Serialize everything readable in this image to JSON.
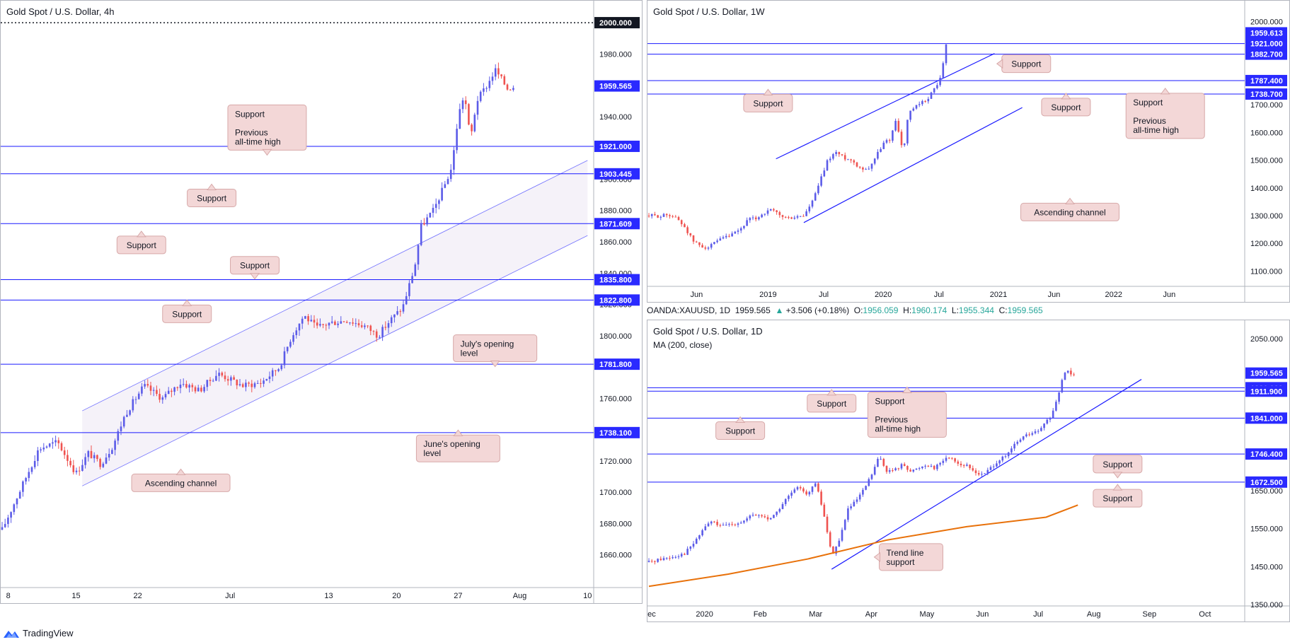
{
  "brand": {
    "name": "TradingView",
    "icon": "tradingview-logo-icon"
  },
  "colors": {
    "bull": "#5b5be8",
    "bear": "#ef5350",
    "level": "#1a1aff",
    "label_bg": "#f3d7d7",
    "label_border": "#d7a9a9",
    "tag_bg": "#2a2aff",
    "ma": "#e8710a"
  },
  "ohlc_bar": {
    "symbol": "OANDA:XAUUSD, 1D",
    "last": "1959.565",
    "change": "+3.506 (+0.18%)",
    "o_label": "O:",
    "o": "1956.059",
    "h_label": "H:",
    "h": "1960.174",
    "l_label": "L:",
    "l": "1955.344",
    "c_label": "C:",
    "c": "1959.565"
  },
  "chart_data": [
    {
      "id": "left",
      "type": "candlestick",
      "title": "Gold Spot / U.S. Dollar, 4h",
      "ylim": [
        1640,
        2005
      ],
      "y_ticks": [
        1660,
        1680,
        1700,
        1720,
        1740,
        1760,
        1780,
        1800,
        1820,
        1840,
        1860,
        1880,
        1900,
        1920,
        1940,
        1960,
        1980
      ],
      "y_tick_labels": [
        "1660.000",
        "1680.000",
        "1700.000",
        "1720.000",
        "1740.000",
        "1760.000",
        "1780.000",
        "1800.000",
        "1820.000",
        "1840.000",
        "1860.000",
        "1880.000",
        "1900.000",
        "1920.000",
        "1940.000",
        "1960.000",
        "1980.000"
      ],
      "x_range": [
        0,
        48
      ],
      "x_ticks": [
        {
          "x": 0.5,
          "label": "8"
        },
        {
          "x": 6,
          "label": "15"
        },
        {
          "x": 11,
          "label": "22"
        },
        {
          "x": 18.5,
          "label": "Jul"
        },
        {
          "x": 26.5,
          "label": "13"
        },
        {
          "x": 32,
          "label": "20"
        },
        {
          "x": 37,
          "label": "27"
        },
        {
          "x": 42,
          "label": "Aug"
        },
        {
          "x": 47.5,
          "label": "10"
        }
      ],
      "price_path": [
        [
          0,
          1676
        ],
        [
          1.5,
          1702
        ],
        [
          3,
          1728
        ],
        [
          4.5,
          1732
        ],
        [
          6,
          1712
        ],
        [
          7,
          1725
        ],
        [
          8,
          1718
        ],
        [
          9,
          1730
        ],
        [
          10,
          1750
        ],
        [
          11.5,
          1768
        ],
        [
          13,
          1760
        ],
        [
          14.5,
          1770
        ],
        [
          16,
          1765
        ],
        [
          17.5,
          1776
        ],
        [
          19.5,
          1768
        ],
        [
          21,
          1770
        ],
        [
          22.5,
          1780
        ],
        [
          23.5,
          1800
        ],
        [
          24.5,
          1813
        ],
        [
          25.5,
          1805
        ],
        [
          26.5,
          1808
        ],
        [
          28,
          1810
        ],
        [
          29.5,
          1806
        ],
        [
          30.5,
          1800
        ],
        [
          31.5,
          1810
        ],
        [
          32.5,
          1818
        ],
        [
          33.5,
          1845
        ],
        [
          34,
          1870
        ],
        [
          35,
          1880
        ],
        [
          36,
          1898
        ],
        [
          36.5,
          1908
        ],
        [
          37,
          1940
        ],
        [
          37.5,
          1955
        ],
        [
          38,
          1925
        ],
        [
          38.5,
          1950
        ],
        [
          39.5,
          1962
        ],
        [
          40,
          1970
        ],
        [
          41,
          1958
        ],
        [
          41.5,
          1959.565
        ]
      ],
      "levels": [
        {
          "value": 2000.0,
          "label": "2000.000",
          "style": "dotted"
        },
        {
          "value": 1959.565,
          "label": "1959.565",
          "style": "price"
        },
        {
          "value": 1921.0,
          "label": "1921.000",
          "style": "solid"
        },
        {
          "value": 1903.445,
          "label": "1903.445",
          "style": "solid"
        },
        {
          "value": 1871.609,
          "label": "1871.609",
          "style": "solid"
        },
        {
          "value": 1835.8,
          "label": "1835.800",
          "style": "solid"
        },
        {
          "value": 1822.8,
          "label": "1822.800",
          "style": "solid"
        },
        {
          "value": 1781.8,
          "label": "1781.800",
          "style": "solid"
        },
        {
          "value": 1738.1,
          "label": "1738.100",
          "style": "solid"
        }
      ],
      "channel": {
        "lower": [
          [
            6.5,
            1704
          ],
          [
            47.5,
            1864
          ]
        ],
        "upper": [
          [
            6.5,
            1752
          ],
          [
            47.5,
            1912
          ]
        ]
      },
      "annotations": [
        {
          "lines": [
            "Support",
            "",
            "Previous",
            "all-time high"
          ],
          "x": 21.5,
          "y": 1933,
          "pointer": "down"
        },
        {
          "lines": [
            "Support"
          ],
          "x": 17,
          "y": 1888,
          "pointer": "up"
        },
        {
          "lines": [
            "Support"
          ],
          "x": 11.3,
          "y": 1858,
          "pointer": "up"
        },
        {
          "lines": [
            "Support"
          ],
          "x": 20.5,
          "y": 1845,
          "pointer": "down"
        },
        {
          "lines": [
            "Support"
          ],
          "x": 15,
          "y": 1814,
          "pointer": "up"
        },
        {
          "lines": [
            "July's opening",
            "level"
          ],
          "x": 40,
          "y": 1792,
          "pointer": "down"
        },
        {
          "lines": [
            "June's opening",
            "level"
          ],
          "x": 37,
          "y": 1728,
          "pointer": "up"
        },
        {
          "lines": [
            "Ascending channel"
          ],
          "x": 14.5,
          "y": 1706,
          "pointer": "up"
        }
      ]
    },
    {
      "id": "weekly",
      "type": "candlestick",
      "title": "Gold Spot / U.S. Dollar, 1W",
      "ylim": [
        1050,
        2050
      ],
      "y_ticks": [
        1100,
        1200,
        1300,
        1400,
        1500,
        1600,
        1700,
        1800,
        1900,
        2000
      ],
      "y_tick_labels": [
        "1100.000",
        "1200.000",
        "1300.000",
        "1400.000",
        "1500.000",
        "1600.000",
        "1700.000",
        "",
        "",
        "2000.000"
      ],
      "x_range": [
        0,
        150
      ],
      "x_ticks": [
        {
          "x": 12,
          "label": "Jun"
        },
        {
          "x": 30,
          "label": "2019"
        },
        {
          "x": 44,
          "label": "Jul"
        },
        {
          "x": 59,
          "label": "2020"
        },
        {
          "x": 73,
          "label": "Jul"
        },
        {
          "x": 88,
          "label": "2021"
        },
        {
          "x": 102,
          "label": "Jun"
        },
        {
          "x": 117,
          "label": "2022"
        },
        {
          "x": 131,
          "label": "Jun"
        }
      ],
      "price_path": [
        [
          0,
          1300
        ],
        [
          3,
          1298
        ],
        [
          5,
          1305
        ],
        [
          7,
          1290
        ],
        [
          9,
          1260
        ],
        [
          11,
          1210
        ],
        [
          13,
          1190
        ],
        [
          15,
          1185
        ],
        [
          17,
          1205
        ],
        [
          19,
          1220
        ],
        [
          21,
          1230
        ],
        [
          23,
          1250
        ],
        [
          25,
          1285
        ],
        [
          27,
          1290
        ],
        [
          29,
          1310
        ],
        [
          31,
          1320
        ],
        [
          33,
          1300
        ],
        [
          35,
          1290
        ],
        [
          37,
          1295
        ],
        [
          39,
          1300
        ],
        [
          41,
          1345
        ],
        [
          43,
          1420
        ],
        [
          45,
          1500
        ],
        [
          47,
          1530
        ],
        [
          49,
          1510
        ],
        [
          51,
          1500
        ],
        [
          53,
          1475
        ],
        [
          55,
          1465
        ],
        [
          57,
          1510
        ],
        [
          59,
          1560
        ],
        [
          61,
          1580
        ],
        [
          62,
          1650
        ],
        [
          63,
          1600
        ],
        [
          64,
          1520
        ],
        [
          65,
          1640
        ],
        [
          66,
          1680
        ],
        [
          68,
          1700
        ],
        [
          70,
          1720
        ],
        [
          72,
          1760
        ],
        [
          73,
          1780
        ],
        [
          74,
          1840
        ],
        [
          75,
          1940
        ],
        [
          75.5,
          1959.613
        ]
      ],
      "levels": [
        {
          "value": 1959.613,
          "label": "1959.613",
          "style": "price"
        },
        {
          "value": 1921.0,
          "label": "1921.000",
          "style": "solid"
        },
        {
          "value": 1882.7,
          "label": "1882.700",
          "style": "solid"
        },
        {
          "value": 1787.4,
          "label": "1787.400",
          "style": "solid"
        },
        {
          "value": 1738.7,
          "label": "1738.700",
          "style": "solid"
        }
      ],
      "channel": {
        "lower": [
          [
            39,
            1275
          ],
          [
            94,
            1690
          ]
        ],
        "upper": [
          [
            32,
            1505
          ],
          [
            87,
            1885
          ]
        ]
      },
      "annotations": [
        {
          "lines": [
            "Support"
          ],
          "x": 95,
          "y": 1848,
          "pointer": "left"
        },
        {
          "lines": [
            "Support"
          ],
          "x": 30,
          "y": 1706,
          "pointer": "up"
        },
        {
          "lines": [
            "Support"
          ],
          "x": 105,
          "y": 1692,
          "pointer": "up"
        },
        {
          "lines": [
            "Support",
            "",
            "Previous",
            "all-time high"
          ],
          "x": 130,
          "y": 1660,
          "pointer": "up"
        },
        {
          "lines": [
            "Ascending channel"
          ],
          "x": 106,
          "y": 1313,
          "pointer": "up"
        }
      ]
    },
    {
      "id": "daily",
      "type": "candlestick",
      "title": "Gold Spot / U.S. Dollar, 1D",
      "subtitle": "MA (200, close)",
      "ylim": [
        1350,
        2080
      ],
      "y_ticks": [
        1350,
        1450,
        1550,
        1650,
        1750,
        1850,
        1950,
        2050
      ],
      "y_tick_labels": [
        "1350.000",
        "1450.000",
        "1550.000",
        "1650.000",
        "",
        "",
        "",
        "2050.000"
      ],
      "x_range": [
        0,
        150
      ],
      "x_ticks": [
        {
          "x": 0,
          "label": "Dec"
        },
        {
          "x": 14,
          "label": "2020"
        },
        {
          "x": 28,
          "label": "Feb"
        },
        {
          "x": 42,
          "label": "Mar"
        },
        {
          "x": 56,
          "label": "Apr"
        },
        {
          "x": 70,
          "label": "May"
        },
        {
          "x": 84,
          "label": "Jun"
        },
        {
          "x": 98,
          "label": "Jul"
        },
        {
          "x": 112,
          "label": "Aug"
        },
        {
          "x": 126,
          "label": "Sep"
        },
        {
          "x": 140,
          "label": "Oct"
        }
      ],
      "price_path": [
        [
          0,
          1462
        ],
        [
          3,
          1470
        ],
        [
          6,
          1476
        ],
        [
          9,
          1485
        ],
        [
          12,
          1520
        ],
        [
          14,
          1555
        ],
        [
          16,
          1570
        ],
        [
          18,
          1555
        ],
        [
          20,
          1560
        ],
        [
          22,
          1565
        ],
        [
          24,
          1570
        ],
        [
          26,
          1585
        ],
        [
          28,
          1585
        ],
        [
          30,
          1575
        ],
        [
          32,
          1590
        ],
        [
          34,
          1620
        ],
        [
          36,
          1645
        ],
        [
          38,
          1660
        ],
        [
          40,
          1640
        ],
        [
          42,
          1670
        ],
        [
          44,
          1590
        ],
        [
          46,
          1480
        ],
        [
          48,
          1520
        ],
        [
          50,
          1600
        ],
        [
          52,
          1620
        ],
        [
          54,
          1650
        ],
        [
          56,
          1690
        ],
        [
          58,
          1740
        ],
        [
          60,
          1700
        ],
        [
          62,
          1705
        ],
        [
          64,
          1720
        ],
        [
          66,
          1700
        ],
        [
          68,
          1710
        ],
        [
          70,
          1720
        ],
        [
          72,
          1710
        ],
        [
          74,
          1730
        ],
        [
          76,
          1740
        ],
        [
          78,
          1720
        ],
        [
          80,
          1715
        ],
        [
          82,
          1700
        ],
        [
          84,
          1690
        ],
        [
          86,
          1710
        ],
        [
          88,
          1730
        ],
        [
          90,
          1740
        ],
        [
          92,
          1770
        ],
        [
          94,
          1790
        ],
        [
          96,
          1800
        ],
        [
          98,
          1805
        ],
        [
          100,
          1830
        ],
        [
          102,
          1860
        ],
        [
          104,
          1940
        ],
        [
          105,
          1970
        ],
        [
          106,
          1960
        ],
        [
          107,
          1959.565
        ]
      ],
      "ma_path": [
        [
          0,
          1398
        ],
        [
          20,
          1430
        ],
        [
          40,
          1470
        ],
        [
          60,
          1520
        ],
        [
          80,
          1555
        ],
        [
          100,
          1580
        ],
        [
          108,
          1612
        ]
      ],
      "levels": [
        {
          "value": 1959.565,
          "label": "1959.565",
          "style": "price"
        },
        {
          "value": 1921.0,
          "label": "1921.000",
          "style": "solid"
        },
        {
          "value": 1911.9,
          "label": "1911.900",
          "style": "solid"
        },
        {
          "value": 1841.0,
          "label": "1841.000",
          "style": "solid"
        },
        {
          "value": 1746.4,
          "label": "1746.400",
          "style": "solid"
        },
        {
          "value": 1672.5,
          "label": "1672.500",
          "style": "solid"
        }
      ],
      "trendline": [
        [
          46,
          1443
        ],
        [
          124,
          1943
        ]
      ],
      "annotations": [
        {
          "lines": [
            "Support"
          ],
          "x": 46,
          "y": 1880,
          "pointer": "up"
        },
        {
          "lines": [
            "Support",
            "",
            "Previous",
            "all-time high"
          ],
          "x": 65,
          "y": 1850,
          "pointer": "up"
        },
        {
          "lines": [
            "Support"
          ],
          "x": 23,
          "y": 1808,
          "pointer": "up"
        },
        {
          "lines": [
            "Support"
          ],
          "x": 118,
          "y": 1720,
          "pointer": "down"
        },
        {
          "lines": [
            "Support"
          ],
          "x": 118,
          "y": 1630,
          "pointer": "up"
        },
        {
          "lines": [
            "Trend line",
            "support"
          ],
          "x": 66,
          "y": 1475,
          "pointer": "left"
        }
      ]
    }
  ]
}
